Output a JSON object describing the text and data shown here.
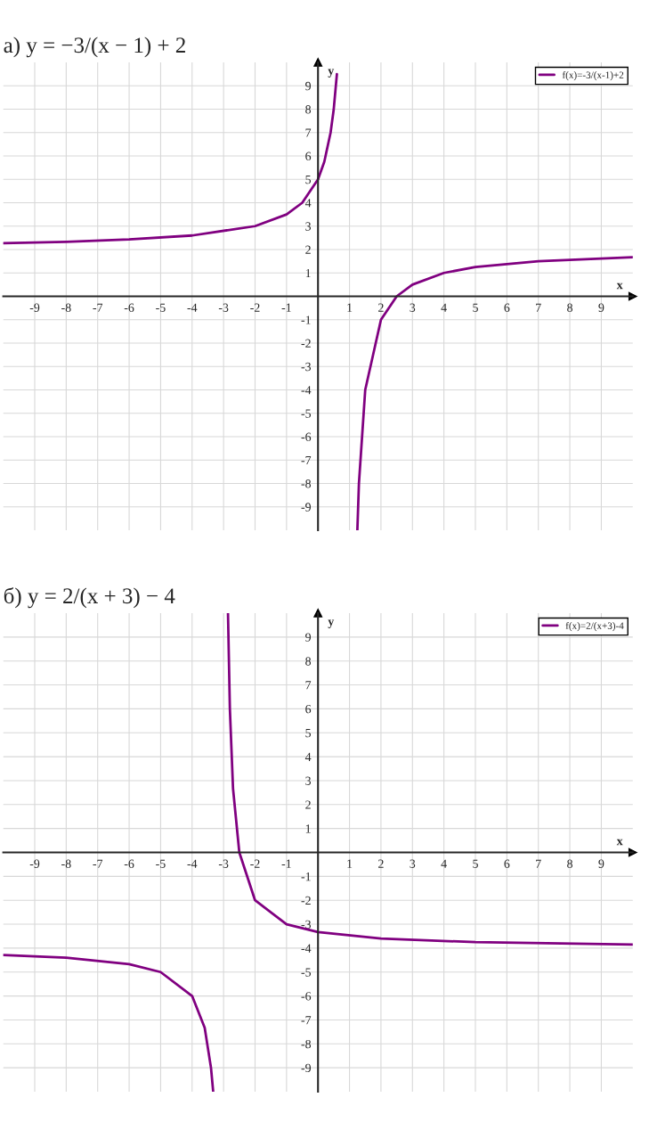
{
  "chart_data": [
    {
      "type": "line",
      "title": "а) y = −3/(x − 1) + 2",
      "xlabel": "x",
      "ylabel": "y",
      "xlim": [
        -10,
        10
      ],
      "ylim": [
        -10,
        10
      ],
      "xticks": [
        -9,
        -8,
        -7,
        -6,
        -5,
        -4,
        -3,
        -2,
        -1,
        1,
        2,
        3,
        4,
        5,
        6,
        7,
        8,
        9
      ],
      "yticks": [
        -9,
        -8,
        -7,
        -6,
        -5,
        -4,
        -3,
        -2,
        -1,
        1,
        2,
        3,
        4,
        5,
        6,
        7,
        8,
        9
      ],
      "grid": true,
      "legend": "top right",
      "series": [
        {
          "name": "f(x)=-3/(x-1)+2",
          "color": "#800080",
          "x": [
            -10,
            -8,
            -6,
            -4,
            -2,
            -1,
            -0.5,
            0,
            0.2,
            0.4,
            0.5,
            0.6,
            1,
            1.25,
            1.3,
            1.5,
            2,
            2.5,
            3,
            4,
            5,
            7,
            10
          ],
          "values": [
            2.27,
            2.33,
            2.43,
            2.6,
            3,
            3.5,
            4,
            5,
            5.75,
            7,
            8,
            9.5,
            null,
            -10,
            -8,
            -4,
            -1,
            0,
            0.5,
            1,
            1.25,
            1.5,
            1.67
          ]
        }
      ]
    },
    {
      "type": "line",
      "title": "б) y = 2/(x + 3) − 4",
      "xlabel": "x",
      "ylabel": "y",
      "xlim": [
        -10,
        10
      ],
      "ylim": [
        -10,
        10
      ],
      "xticks": [
        -9,
        -8,
        -7,
        -6,
        -5,
        -4,
        -3,
        -2,
        -1,
        1,
        2,
        3,
        4,
        5,
        6,
        7,
        8,
        9
      ],
      "yticks": [
        -9,
        -8,
        -7,
        -6,
        -5,
        -4,
        -3,
        -2,
        -1,
        1,
        2,
        3,
        4,
        5,
        6,
        7,
        8,
        9
      ],
      "grid": true,
      "legend": "top right",
      "series": [
        {
          "name": "f(x)=2/(x+3)-4",
          "color": "#800080",
          "x": [
            -10,
            -8,
            -6,
            -5,
            -4,
            -3.6,
            -3.4,
            -3.33,
            -3,
            -2.86,
            -2.8,
            -2.7,
            -2.5,
            -2,
            -1,
            0,
            2,
            5,
            10
          ],
          "values": [
            -4.29,
            -4.4,
            -4.67,
            -5,
            -6,
            -7.33,
            -9,
            -10,
            null,
            10,
            6,
            2.67,
            0,
            -2,
            -3,
            -3.33,
            -3.6,
            -3.75,
            -3.85
          ]
        }
      ]
    }
  ]
}
